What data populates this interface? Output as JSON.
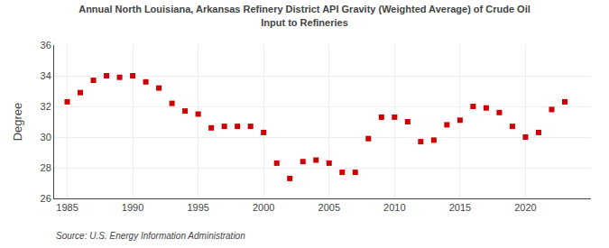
{
  "chart_data": {
    "type": "scatter",
    "title": "Annual North Louisiana, Arkansas Refinery District API Gravity (Weighted Average) of Crude Oil\nInput to Refineries",
    "ylabel": "Degree",
    "annotations": [
      "Source: U.S. Energy Information Administration"
    ],
    "x": [
      1985,
      1986,
      1987,
      1988,
      1989,
      1990,
      1991,
      1992,
      1993,
      1994,
      1995,
      1996,
      1997,
      1998,
      1999,
      2000,
      2001,
      2002,
      2003,
      2004,
      2005,
      2006,
      2007,
      2008,
      2009,
      2010,
      2011,
      2012,
      2013,
      2014,
      2015,
      2016,
      2017,
      2018,
      2019,
      2020,
      2021,
      2022,
      2023
    ],
    "values": [
      32.3,
      32.9,
      33.7,
      34.0,
      33.9,
      34.0,
      33.6,
      33.2,
      32.2,
      31.7,
      31.5,
      30.6,
      30.7,
      30.7,
      30.7,
      30.3,
      28.3,
      27.3,
      28.4,
      28.5,
      28.3,
      27.7,
      27.7,
      29.9,
      31.3,
      31.3,
      31.0,
      29.7,
      29.8,
      30.8,
      31.1,
      32.0,
      31.9,
      31.6,
      30.7,
      30.0,
      30.3,
      31.8,
      32.3
    ],
    "color": "#cc0000",
    "marker": "square",
    "xlim": [
      1984,
      2025
    ],
    "xticks": [
      1985,
      1990,
      1995,
      2000,
      2005,
      2010,
      2015,
      2020
    ],
    "ylim": [
      26,
      36
    ],
    "yticks": [
      26,
      28,
      30,
      32,
      34,
      36
    ],
    "grid": true
  }
}
